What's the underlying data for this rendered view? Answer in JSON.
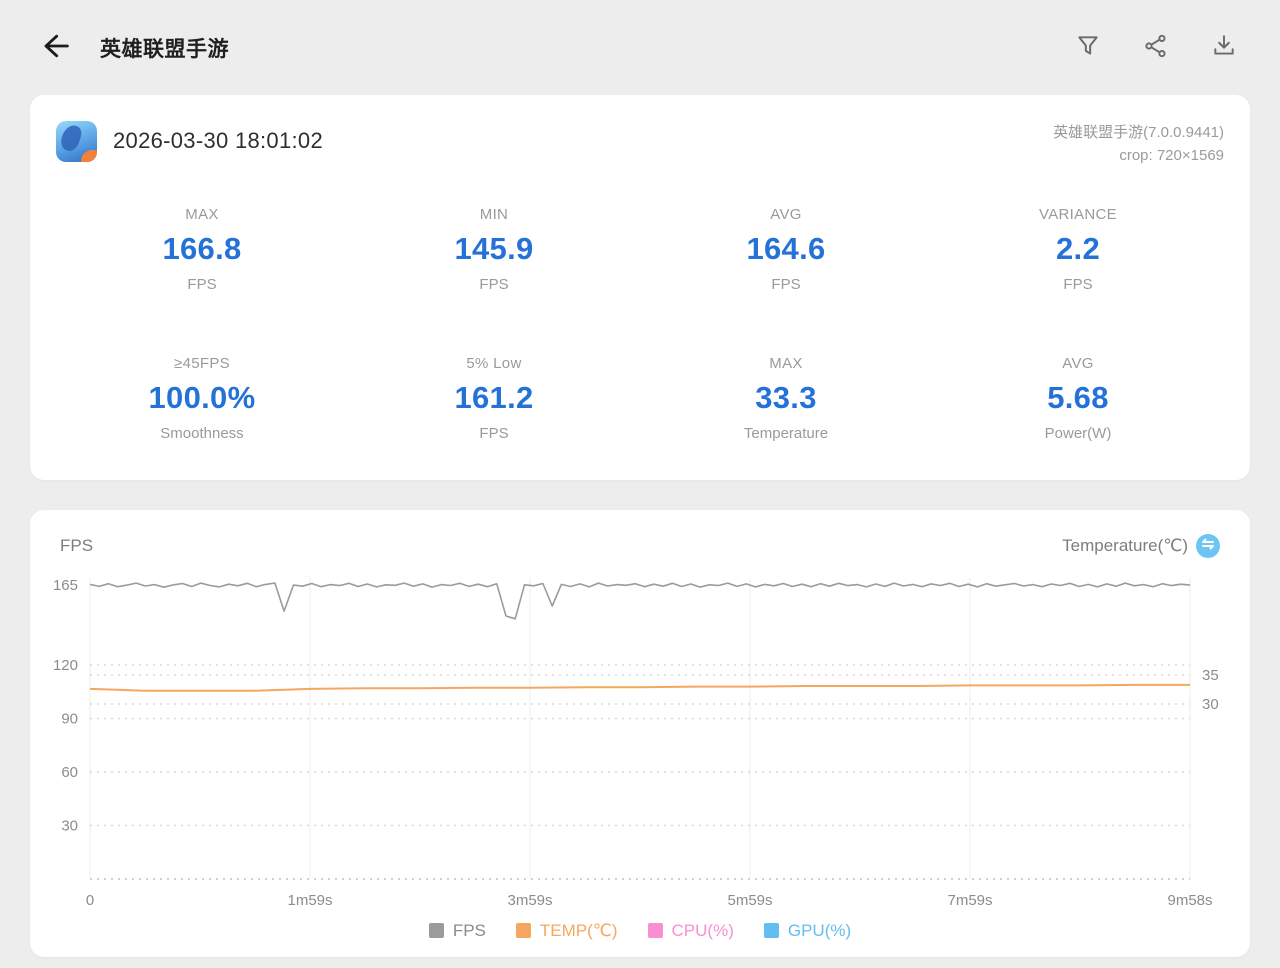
{
  "header": {
    "title": "英雄联盟手游"
  },
  "record": {
    "datetime": "2026-03-30 18:01:02",
    "app_version": "英雄联盟手游(7.0.0.9441)",
    "crop": "crop: 720×1569"
  },
  "summary": {
    "stats": [
      {
        "label": "MAX",
        "value": "166.8",
        "unit": "FPS"
      },
      {
        "label": "MIN",
        "value": "145.9",
        "unit": "FPS"
      },
      {
        "label": "AVG",
        "value": "164.6",
        "unit": "FPS"
      },
      {
        "label": "VARIANCE",
        "value": "2.2",
        "unit": "FPS"
      },
      {
        "label": "≥45FPS",
        "value": "100.0%",
        "unit": "Smoothness"
      },
      {
        "label": "5% Low",
        "value": "161.2",
        "unit": "FPS"
      },
      {
        "label": "MAX",
        "value": "33.3",
        "unit": "Temperature"
      },
      {
        "label": "AVG",
        "value": "5.68",
        "unit": "Power(W)"
      }
    ]
  },
  "chart_data": {
    "type": "line",
    "left_axis_title": "FPS",
    "right_axis_title": "Temperature(℃)",
    "x_ticks": [
      "0",
      "1m59s",
      "3m59s",
      "5m59s",
      "7m59s",
      "9m58s"
    ],
    "duration_seconds": 598,
    "y_left_ticks": [
      165,
      120,
      90,
      60,
      30
    ],
    "y_left_range": [
      0,
      168
    ],
    "y_right_ticks": [
      35,
      30
    ],
    "grid": "dotted-horizontal, faint-vertical-at-ticks",
    "legend_position": "bottom-center",
    "legend": [
      {
        "label": "FPS",
        "color": "#9b9b9b"
      },
      {
        "label": "TEMP(℃)",
        "color": "#f5a75f"
      },
      {
        "label": "CPU(%)",
        "color": "#f88fd1"
      },
      {
        "label": "GPU(%)",
        "color": "#62bdf0"
      }
    ],
    "series": [
      {
        "name": "FPS",
        "axis": "left",
        "color": "#9b9b9b",
        "values": [
          165.2,
          164.1,
          165.6,
          163.9,
          164.8,
          165.9,
          164.3,
          165.1,
          163.6,
          164.9,
          165.7,
          164.0,
          165.9,
          164.6,
          163.8,
          165.3,
          164.4,
          165.8,
          163.9,
          165.2,
          165.9,
          150.2,
          164.8,
          164.2,
          165.7,
          163.9,
          165.1,
          164.5,
          165.8,
          164.0,
          165.4,
          163.8,
          165.0,
          164.7,
          165.9,
          164.2,
          165.5,
          163.7,
          165.1,
          164.6,
          165.8,
          164.1,
          165.3,
          163.9,
          165.6,
          147.5,
          145.9,
          165.0,
          164.4,
          165.7,
          153.1,
          165.2,
          164.0,
          165.5,
          163.8,
          165.9,
          164.3,
          165.1,
          164.7,
          165.6,
          163.9,
          165.3,
          164.2,
          165.8,
          164.0,
          165.4,
          163.7,
          165.0,
          164.6,
          165.9,
          164.1,
          165.5,
          163.8,
          165.2,
          164.4,
          165.7,
          164.0,
          165.3,
          163.9,
          165.6,
          164.2,
          165.8,
          164.5,
          165.1,
          163.8,
          165.4,
          164.1,
          165.9,
          164.3,
          165.2,
          163.9,
          165.5,
          164.6,
          165.8,
          164.0,
          165.3,
          163.8,
          165.6,
          164.2,
          165.0,
          165.7,
          164.3,
          165.1,
          163.9,
          165.4,
          164.6,
          165.8,
          164.0,
          165.2,
          163.8,
          165.5,
          164.2,
          165.9,
          164.4,
          165.1,
          163.9,
          165.6,
          164.5,
          165.3,
          164.8
        ]
      },
      {
        "name": "TEMP",
        "axis": "right",
        "color": "#f5a75f",
        "values": [
          32.6,
          32.3,
          32.3,
          32.3,
          32.6,
          32.7,
          32.7,
          32.8,
          32.8,
          32.9,
          32.9,
          33.0,
          33.0,
          33.1,
          33.1,
          33.1,
          33.2,
          33.2,
          33.2,
          33.3,
          33.3
        ]
      }
    ]
  },
  "colors": {
    "accent_blue": "#2472d8",
    "axis_label": "#8c8c8c",
    "grid_dotted": "#d8d8d8",
    "grid_vertical": "#ececec",
    "swap_icon_bg": "#6cc5f3"
  }
}
